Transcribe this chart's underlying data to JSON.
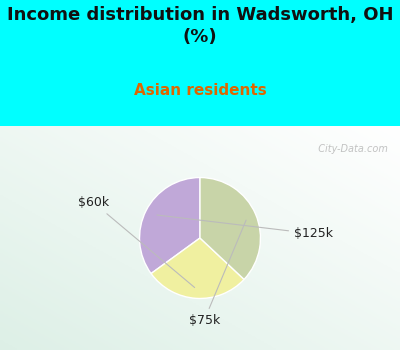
{
  "title": "Income distribution in Wadsworth, OH\n(%)",
  "subtitle": "Asian residents",
  "title_color": "#111111",
  "subtitle_color": "#dd6600",
  "top_bg_color": "#00ffff",
  "slices": [
    {
      "label": "$125k",
      "value": 35,
      "color": "#c0a8d8"
    },
    {
      "label": "$60k",
      "value": 28,
      "color": "#f0f0a0"
    },
    {
      "label": "$75k",
      "value": 37,
      "color": "#c8d4a8"
    }
  ],
  "label_color": "#222222",
  "label_fontsize": 9,
  "watermark": "  City-Data.com",
  "startangle": 90,
  "title_fontsize": 13,
  "subtitle_fontsize": 11
}
